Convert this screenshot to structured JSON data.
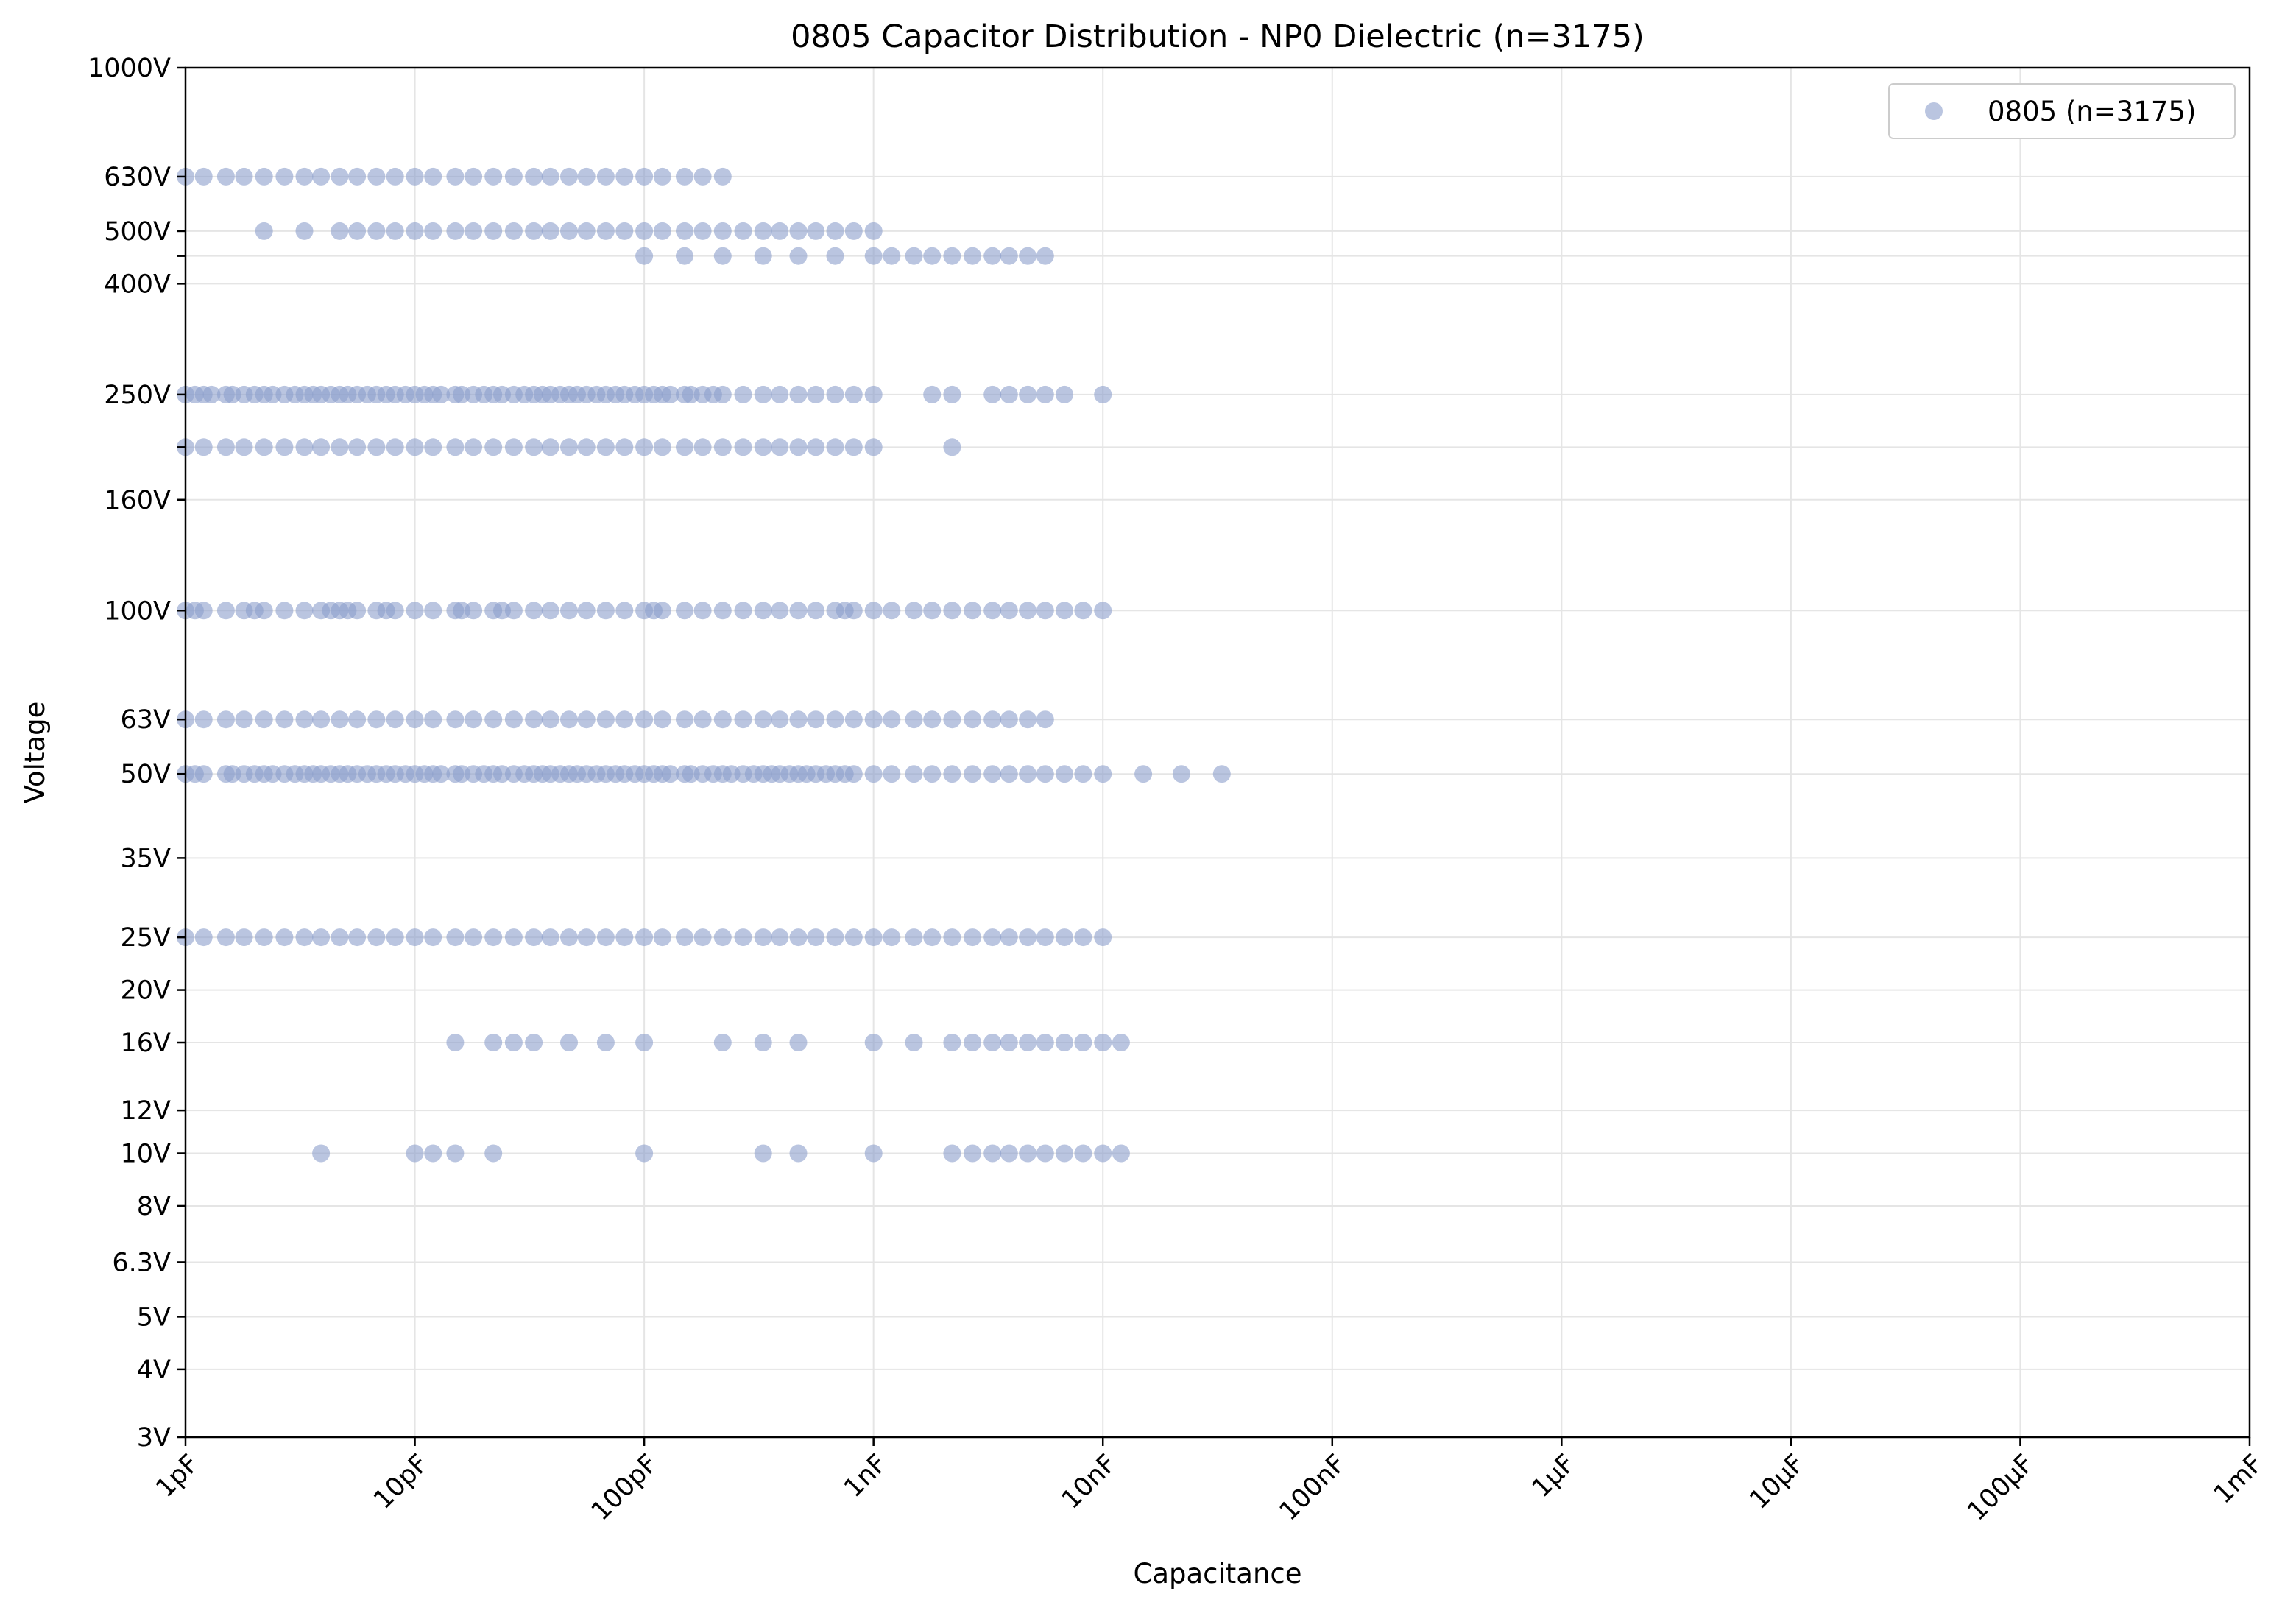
{
  "chart_data": {
    "type": "scatter",
    "title": "0805 Capacitor Distribution - NP0 Dielectric (n=3175)",
    "xlabel": "Capacitance",
    "ylabel": "Voltage",
    "xscale": "log",
    "yscale": "log",
    "xlim": [
      1e-12,
      0.001
    ],
    "ylim": [
      3,
      1000
    ],
    "grid": true,
    "legend_position": "top-right",
    "marker_color": "#8c9fcc",
    "x_ticks": [
      {
        "value": 1e-12,
        "label": "1pF"
      },
      {
        "value": 1e-11,
        "label": "10pF"
      },
      {
        "value": 1e-10,
        "label": "100pF"
      },
      {
        "value": 1e-09,
        "label": "1nF"
      },
      {
        "value": 1e-08,
        "label": "10nF"
      },
      {
        "value": 1e-07,
        "label": "100nF"
      },
      {
        "value": 1e-06,
        "label": "1µF"
      },
      {
        "value": 1e-05,
        "label": "10µF"
      },
      {
        "value": 0.0001,
        "label": "100µF"
      },
      {
        "value": 0.001,
        "label": "1mF"
      }
    ],
    "y_ticks": [
      {
        "value": 3,
        "label": "3V"
      },
      {
        "value": 4,
        "label": "4V"
      },
      {
        "value": 5,
        "label": "5V"
      },
      {
        "value": 6.3,
        "label": "6.3V"
      },
      {
        "value": 8,
        "label": "8V"
      },
      {
        "value": 10,
        "label": "10V"
      },
      {
        "value": 12,
        "label": "12V"
      },
      {
        "value": 16,
        "label": "16V"
      },
      {
        "value": 20,
        "label": "20V"
      },
      {
        "value": 25,
        "label": "25V"
      },
      {
        "value": 35,
        "label": "35V"
      },
      {
        "value": 50,
        "label": "50V"
      },
      {
        "value": 63,
        "label": "63V"
      },
      {
        "value": 100,
        "label": "100V"
      },
      {
        "value": 160,
        "label": "160V"
      },
      {
        "value": 200,
        "label": ""
      },
      {
        "value": 250,
        "label": "250V"
      },
      {
        "value": 400,
        "label": "400V"
      },
      {
        "value": 450,
        "label": ""
      },
      {
        "value": 500,
        "label": "500V"
      },
      {
        "value": 630,
        "label": "630V"
      },
      {
        "value": 1000,
        "label": "1000V"
      }
    ],
    "series": [
      {
        "name": "0805 (n=3175)",
        "points": [
          {
            "voltage": 630,
            "capacitance_pf": [
              1,
              1.2,
              1.5,
              1.8,
              2.2,
              2.7,
              3.3,
              3.9,
              4.7,
              5.6,
              6.8,
              8.2,
              10,
              12,
              15,
              18,
              22,
              27,
              33,
              39,
              47,
              56,
              68,
              82,
              100,
              120,
              150,
              180,
              220
            ]
          },
          {
            "voltage": 500,
            "capacitance_pf": [
              2.2,
              3.3,
              4.7,
              5.6,
              6.8,
              8.2,
              10,
              12,
              15,
              18,
              22,
              27,
              33,
              39,
              47,
              56,
              68,
              82,
              100,
              120,
              150,
              180,
              220,
              270,
              330,
              390,
              470,
              560,
              680,
              820,
              1000
            ]
          },
          {
            "voltage": 450,
            "capacitance_pf": [
              100,
              150,
              220,
              330,
              470,
              680,
              1000,
              1200,
              1500,
              1800,
              2200,
              2700,
              3300,
              3900,
              4700,
              5600
            ]
          },
          {
            "voltage": 250,
            "capacitance_pf": [
              1,
              1.1,
              1.2,
              1.3,
              1.5,
              1.6,
              1.8,
              2,
              2.2,
              2.4,
              2.7,
              3,
              3.3,
              3.6,
              3.9,
              4.3,
              4.7,
              5.1,
              5.6,
              6.2,
              6.8,
              7.5,
              8.2,
              9.1,
              10,
              11,
              12,
              13,
              15,
              16,
              18,
              20,
              22,
              24,
              27,
              30,
              33,
              36,
              39,
              43,
              47,
              51,
              56,
              62,
              68,
              75,
              82,
              91,
              100,
              110,
              120,
              130,
              150,
              160,
              180,
              200,
              220,
              270,
              330,
              390,
              470,
              560,
              680,
              820,
              1000,
              1800,
              2200,
              3300,
              3900,
              4700,
              5600,
              6800,
              10000
            ]
          },
          {
            "voltage": 200,
            "capacitance_pf": [
              1,
              1.2,
              1.5,
              1.8,
              2.2,
              2.7,
              3.3,
              3.9,
              4.7,
              5.6,
              6.8,
              8.2,
              10,
              12,
              15,
              18,
              22,
              27,
              33,
              39,
              47,
              56,
              68,
              82,
              100,
              120,
              150,
              180,
              220,
              270,
              330,
              390,
              470,
              560,
              680,
              820,
              1000,
              2200
            ]
          },
          {
            "voltage": 100,
            "capacitance_pf": [
              1,
              1.1,
              1.2,
              1.5,
              1.8,
              2,
              2.2,
              2.7,
              3.3,
              3.9,
              4.3,
              4.7,
              5.1,
              5.6,
              6.8,
              7.5,
              8.2,
              10,
              12,
              15,
              16,
              18,
              22,
              24,
              27,
              33,
              39,
              47,
              56,
              68,
              82,
              100,
              110,
              120,
              150,
              180,
              220,
              270,
              330,
              390,
              470,
              560,
              680,
              750,
              820,
              1000,
              1200,
              1500,
              1800,
              2200,
              2700,
              3300,
              3900,
              4700,
              5600,
              6800,
              8200,
              10000
            ]
          },
          {
            "voltage": 63,
            "capacitance_pf": [
              1,
              1.2,
              1.5,
              1.8,
              2.2,
              2.7,
              3.3,
              3.9,
              4.7,
              5.6,
              6.8,
              8.2,
              10,
              12,
              15,
              18,
              22,
              27,
              33,
              39,
              47,
              56,
              68,
              82,
              100,
              120,
              150,
              180,
              220,
              270,
              330,
              390,
              470,
              560,
              680,
              820,
              1000,
              1200,
              1500,
              1800,
              2200,
              2700,
              3300,
              3900,
              4700,
              5600
            ]
          },
          {
            "voltage": 50,
            "capacitance_pf": [
              1,
              1.1,
              1.2,
              1.5,
              1.6,
              1.8,
              2,
              2.2,
              2.4,
              2.7,
              3,
              3.3,
              3.6,
              3.9,
              4.3,
              4.7,
              5.1,
              5.6,
              6.2,
              6.8,
              7.5,
              8.2,
              9.1,
              10,
              11,
              12,
              13,
              15,
              16,
              18,
              20,
              22,
              24,
              27,
              30,
              33,
              36,
              39,
              43,
              47,
              51,
              56,
              62,
              68,
              75,
              82,
              91,
              100,
              110,
              120,
              130,
              150,
              160,
              180,
              200,
              220,
              240,
              270,
              300,
              330,
              360,
              390,
              430,
              470,
              510,
              560,
              620,
              680,
              750,
              820,
              1000,
              1200,
              1500,
              1800,
              2200,
              2700,
              3300,
              3900,
              4700,
              5600,
              6800,
              8200,
              10000,
              15000,
              22000,
              33000
            ]
          },
          {
            "voltage": 25,
            "capacitance_pf": [
              1,
              1.2,
              1.5,
              1.8,
              2.2,
              2.7,
              3.3,
              3.9,
              4.7,
              5.6,
              6.8,
              8.2,
              10,
              12,
              15,
              18,
              22,
              27,
              33,
              39,
              47,
              56,
              68,
              82,
              100,
              120,
              150,
              180,
              220,
              270,
              330,
              390,
              470,
              560,
              680,
              820,
              1000,
              1200,
              1500,
              1800,
              2200,
              2700,
              3300,
              3900,
              4700,
              5600,
              6800,
              8200,
              10000
            ]
          },
          {
            "voltage": 16,
            "capacitance_pf": [
              15,
              22,
              27,
              33,
              47,
              68,
              100,
              220,
              330,
              470,
              1000,
              1500,
              2200,
              2700,
              3300,
              3900,
              4700,
              5600,
              6800,
              8200,
              10000,
              12000
            ]
          },
          {
            "voltage": 10,
            "capacitance_pf": [
              3.9,
              10,
              12,
              15,
              22,
              100,
              330,
              470,
              1000,
              2200,
              2700,
              3300,
              3900,
              4700,
              5600,
              6800,
              8200,
              10000,
              12000
            ]
          }
        ]
      }
    ]
  }
}
